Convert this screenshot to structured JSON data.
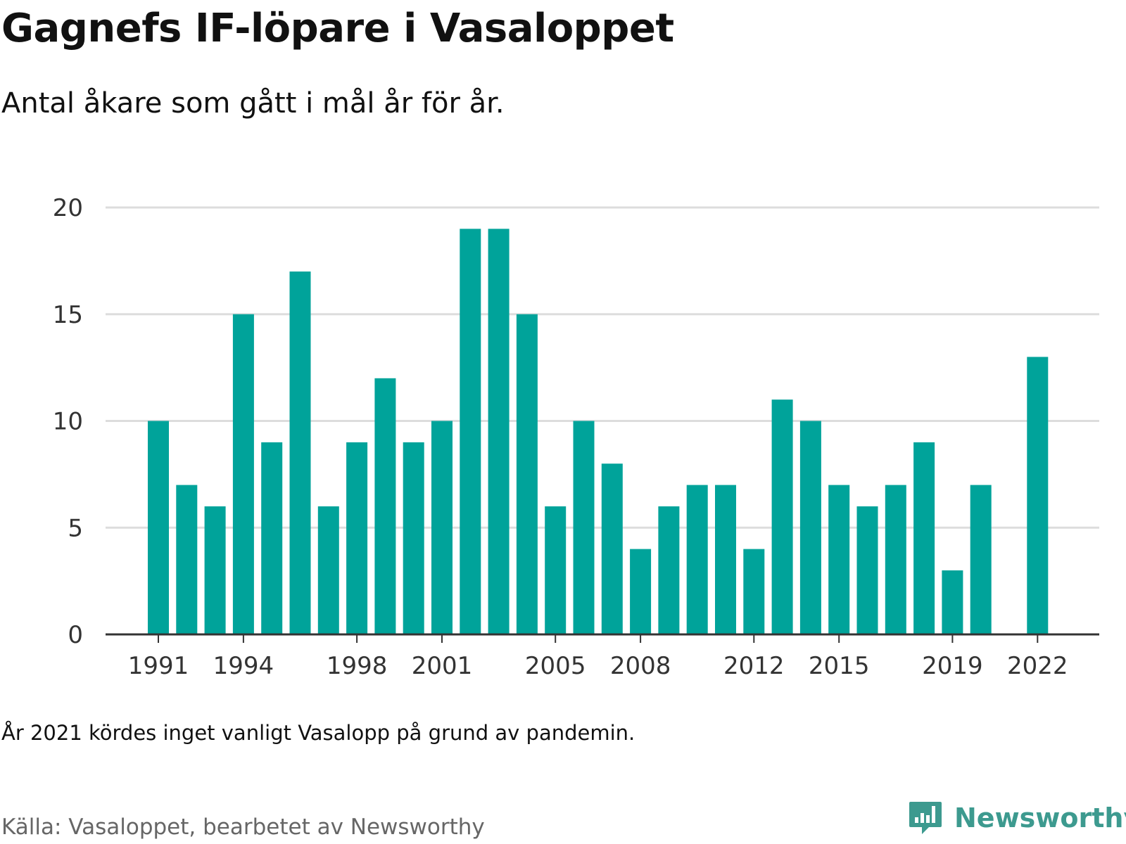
{
  "header": {
    "title": "Gagnefs IF-löpare i Vasaloppet",
    "subtitle": "Antal åkare som gått i mål år för år."
  },
  "footer": {
    "note": "År 2021 kördes inget vanligt Vasalopp på grund av pandemin.",
    "source": "Källa: Vasaloppet, bearbetet av Newsworthy",
    "brand": "Newsworthy"
  },
  "colors": {
    "bar": "#00a39a",
    "grid": "#dddddd",
    "axis": "#333333",
    "brand": "#3d9a8f"
  },
  "chart_data": {
    "type": "bar",
    "title": "Gagnefs IF-löpare i Vasaloppet",
    "subtitle": "Antal åkare som gått i mål år för år.",
    "x": [
      1991,
      1992,
      1993,
      1994,
      1995,
      1996,
      1997,
      1998,
      1999,
      2000,
      2001,
      2002,
      2003,
      2004,
      2005,
      2006,
      2007,
      2008,
      2009,
      2010,
      2011,
      2012,
      2013,
      2014,
      2015,
      2016,
      2017,
      2018,
      2019,
      2020,
      2021,
      2022
    ],
    "values": [
      10,
      7,
      6,
      15,
      9,
      17,
      6,
      9,
      12,
      9,
      10,
      19,
      19,
      15,
      6,
      10,
      8,
      4,
      6,
      7,
      7,
      4,
      11,
      10,
      7,
      6,
      7,
      9,
      3,
      7,
      null,
      13
    ],
    "x_tick_labels": [
      "1991",
      "1994",
      "1998",
      "2001",
      "2005",
      "2008",
      "2012",
      "2015",
      "2019",
      "2022"
    ],
    "y_ticks": [
      0,
      5,
      10,
      15,
      20
    ],
    "ylim": [
      0,
      20
    ],
    "xlabel": "",
    "ylabel": "",
    "grid": true,
    "legend": "none"
  }
}
